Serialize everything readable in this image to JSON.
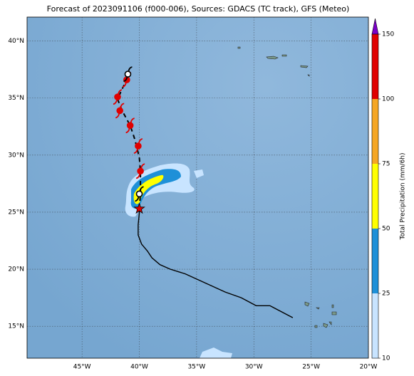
{
  "title": "Forecast of 2023091106 (f000-006), Sources: GDACS (TC track), GFS (Meteo)",
  "map": {
    "lon_range": [
      -49.8,
      -20
    ],
    "lat_range": [
      12.2,
      42.1
    ],
    "lon_ticks": [
      {
        "value": -45,
        "label": "45°W"
      },
      {
        "value": -40,
        "label": "40°W"
      },
      {
        "value": -35,
        "label": "35°W"
      },
      {
        "value": -30,
        "label": "30°W"
      },
      {
        "value": -25,
        "label": "25°W"
      },
      {
        "value": -20,
        "label": "20°W"
      }
    ],
    "lat_ticks": [
      {
        "value": 15,
        "label": "15°N"
      },
      {
        "value": 20,
        "label": "20°N"
      },
      {
        "value": 25,
        "label": "25°N"
      },
      {
        "value": 30,
        "label": "30°N"
      },
      {
        "value": 35,
        "label": "35°N"
      },
      {
        "value": 40,
        "label": "40°N"
      }
    ]
  },
  "colorbar": {
    "label": "Total Precipitation (mm/6h)",
    "boundaries": [
      10,
      25,
      50,
      75,
      100,
      150
    ],
    "colors": [
      "#c8e4ff",
      "#1e90d8",
      "#ffff00",
      "#f5a623",
      "#e00000"
    ],
    "extend_color": "#7b00c8"
  },
  "track": {
    "past": {
      "lon": [
        -26.6,
        -28.6,
        -29.8,
        -31.1,
        -32.5,
        -36.0,
        -37.3,
        -38.2,
        -38.9,
        -39.3,
        -39.8,
        -40.1,
        -40.1,
        -40.0,
        -40.0
      ],
      "lat": [
        15.75,
        16.8,
        16.8,
        17.5,
        18.0,
        19.6,
        20.0,
        20.4,
        21.0,
        21.6,
        22.2,
        23.0,
        23.9,
        24.9,
        25.3
      ]
    },
    "forecast": {
      "lon": [
        -40.0,
        -39.9,
        -39.9,
        -40.0,
        -40.4,
        -40.8,
        -41.5,
        -41.9,
        -41.5,
        -41.1,
        -41.0
      ],
      "lat": [
        25.3,
        26.6,
        28.6,
        29.8,
        31.4,
        32.6,
        33.9,
        34.9,
        35.8,
        36.6,
        37.3
      ]
    },
    "symbols": {
      "lon": [
        -39.9,
        -40.1,
        -40.8,
        -41.7,
        -41.9,
        -41.1,
        -40.0,
        -41.0
      ],
      "lat": [
        28.6,
        30.8,
        32.6,
        33.9,
        35.1,
        36.6,
        26.6,
        37.1
      ],
      "colors": [
        "#e00000",
        "#e00000",
        "#e00000",
        "#e00000",
        "#e00000",
        "#e00000",
        "#ffffff",
        "#ffffff"
      ]
    },
    "current": {
      "lon": -40.0,
      "lat": 25.3
    }
  }
}
